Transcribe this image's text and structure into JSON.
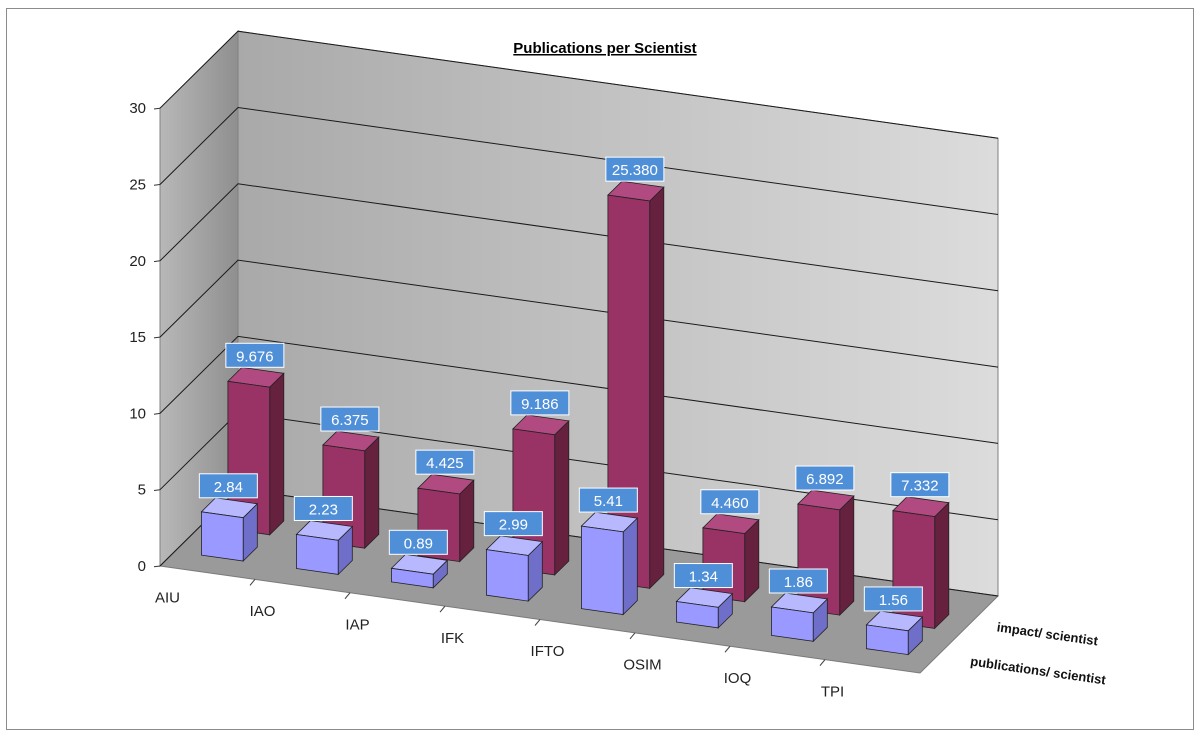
{
  "chart_data": {
    "type": "bar",
    "title": "Publications per Scientist",
    "categories": [
      "AIU",
      "IAO",
      "IAP",
      "IFK",
      "IFTO",
      "OSIM",
      "IOQ",
      "TPI"
    ],
    "series": [
      {
        "name": "impact/ scientist",
        "values": [
          9.676,
          6.375,
          4.425,
          9.186,
          25.38,
          4.46,
          6.892,
          7.332
        ],
        "labels": [
          "9.676",
          "6.375",
          "4.425",
          "9.186",
          "25.380",
          "4.460",
          "6.892",
          "7.332"
        ]
      },
      {
        "name": "publications/ scientist",
        "values": [
          2.84,
          2.23,
          0.89,
          2.99,
          5.41,
          1.34,
          1.86,
          1.56
        ],
        "labels": [
          "2.84",
          "2.23",
          "0.89",
          "2.99",
          "5.41",
          "1.34",
          "1.86",
          "1.56"
        ]
      }
    ],
    "ylim": [
      0,
      30
    ],
    "yticks": [
      "0",
      "5",
      "10",
      "15",
      "20",
      "25",
      "30"
    ],
    "grid": true,
    "colors": {
      "impact": "#993366",
      "publications": "#9999ff",
      "label_bg": "#4f8fd8",
      "wall": "#c8c8c8",
      "floor": "#9a9a9a"
    }
  }
}
